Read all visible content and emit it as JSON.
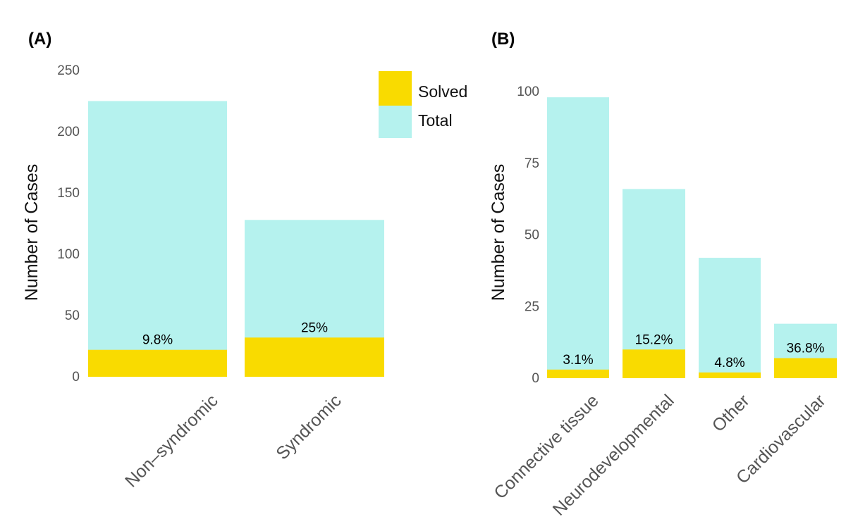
{
  "colors": {
    "solved": "#F9DB00",
    "total": "#B5F2EE"
  },
  "legend": {
    "solved_label": "Solved",
    "total_label": "Total"
  },
  "chart_data": [
    {
      "panel": "(A)",
      "type": "bar",
      "stacked": "overlay",
      "ylabel": "Number of Cases",
      "ylim": [
        0,
        250
      ],
      "yticks": [
        0,
        50,
        100,
        150,
        200,
        250
      ],
      "categories": [
        "Non–syndromic",
        "Syndromic"
      ],
      "series": [
        {
          "name": "Total",
          "values": [
            225,
            128
          ]
        },
        {
          "name": "Solved",
          "values": [
            22,
            32
          ]
        }
      ],
      "labels": [
        "9.8%",
        "25%"
      ]
    },
    {
      "panel": "(B)",
      "type": "bar",
      "stacked": "overlay",
      "ylabel": "Number of Cases",
      "ylim": [
        0,
        100
      ],
      "yticks": [
        0,
        25,
        50,
        75,
        100
      ],
      "categories": [
        "Connective tissue",
        "Neurodevelopmental",
        "Other",
        "Cardiovascular"
      ],
      "series": [
        {
          "name": "Total",
          "values": [
            98,
            66,
            42,
            19
          ]
        },
        {
          "name": "Solved",
          "values": [
            3,
            10,
            2,
            7
          ]
        }
      ],
      "labels": [
        "3.1%",
        "15.2%",
        "4.8%",
        "36.8%"
      ]
    }
  ]
}
